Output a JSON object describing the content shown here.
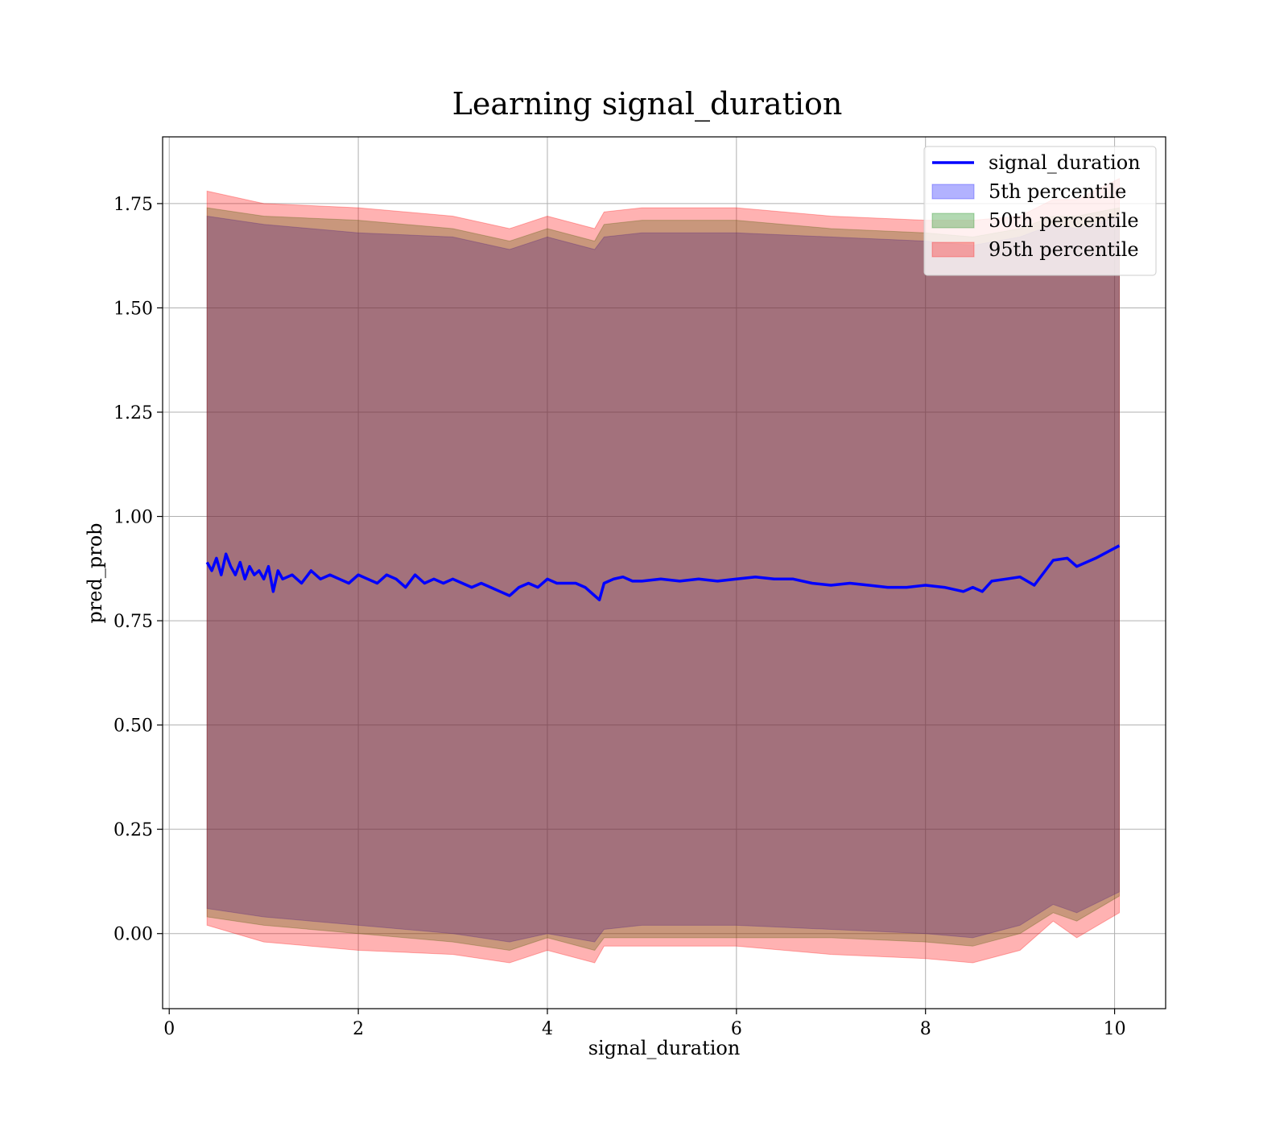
{
  "chart_data": {
    "type": "line",
    "title": "Learning signal_duration",
    "xlabel": "signal_duration",
    "ylabel": "pred_prob",
    "xlim": [
      -0.07,
      10.54
    ],
    "ylim": [
      -0.18,
      1.91
    ],
    "xticks": [
      0,
      2,
      4,
      6,
      8,
      10
    ],
    "xtick_labels": [
      "0",
      "2",
      "4",
      "6",
      "8",
      "10"
    ],
    "yticks": [
      0.0,
      0.25,
      0.5,
      0.75,
      1.0,
      1.25,
      1.5,
      1.75
    ],
    "ytick_labels": [
      "0.00",
      "0.25",
      "0.50",
      "0.75",
      "1.00",
      "1.25",
      "1.50",
      "1.75"
    ],
    "grid": true,
    "legend": {
      "position": "top-right",
      "entries": [
        {
          "label": "signal_duration",
          "kind": "line",
          "color": "#0000ff"
        },
        {
          "label": "5th percentile",
          "kind": "band",
          "color": "#0000ff"
        },
        {
          "label": "50th percentile",
          "kind": "band",
          "color": "#008000"
        },
        {
          "label": "95th percentile",
          "kind": "band",
          "color": "#ff0000"
        }
      ]
    },
    "series": [
      {
        "name": "signal_duration",
        "color": "#0000ff",
        "x": [
          0.4,
          0.45,
          0.5,
          0.55,
          0.6,
          0.65,
          0.7,
          0.75,
          0.8,
          0.85,
          0.9,
          0.95,
          1.0,
          1.05,
          1.1,
          1.15,
          1.2,
          1.3,
          1.4,
          1.5,
          1.6,
          1.7,
          1.8,
          1.9,
          2.0,
          2.1,
          2.2,
          2.3,
          2.4,
          2.5,
          2.6,
          2.7,
          2.8,
          2.9,
          3.0,
          3.1,
          3.2,
          3.3,
          3.4,
          3.5,
          3.6,
          3.7,
          3.8,
          3.9,
          4.0,
          4.1,
          4.2,
          4.3,
          4.4,
          4.5,
          4.55,
          4.6,
          4.7,
          4.8,
          4.9,
          5.0,
          5.2,
          5.4,
          5.6,
          5.8,
          6.0,
          6.2,
          6.4,
          6.6,
          6.8,
          7.0,
          7.2,
          7.4,
          7.6,
          7.8,
          8.0,
          8.2,
          8.4,
          8.5,
          8.6,
          8.7,
          8.85,
          9.0,
          9.15,
          9.35,
          9.5,
          9.6,
          9.8,
          10.05
        ],
        "y": [
          0.89,
          0.87,
          0.9,
          0.86,
          0.91,
          0.88,
          0.86,
          0.89,
          0.85,
          0.88,
          0.86,
          0.87,
          0.85,
          0.88,
          0.82,
          0.87,
          0.85,
          0.86,
          0.84,
          0.87,
          0.85,
          0.86,
          0.85,
          0.84,
          0.86,
          0.85,
          0.84,
          0.86,
          0.85,
          0.83,
          0.86,
          0.84,
          0.85,
          0.84,
          0.85,
          0.84,
          0.83,
          0.84,
          0.83,
          0.82,
          0.81,
          0.83,
          0.84,
          0.83,
          0.85,
          0.84,
          0.84,
          0.84,
          0.83,
          0.81,
          0.8,
          0.84,
          0.85,
          0.855,
          0.845,
          0.845,
          0.85,
          0.845,
          0.85,
          0.845,
          0.85,
          0.855,
          0.85,
          0.85,
          0.84,
          0.835,
          0.84,
          0.835,
          0.83,
          0.83,
          0.835,
          0.83,
          0.82,
          0.83,
          0.82,
          0.845,
          0.85,
          0.855,
          0.835,
          0.895,
          0.9,
          0.88,
          0.9,
          0.93
        ]
      },
      {
        "name": "5th percentile",
        "color": "#0000ff",
        "x": [
          0.4,
          1.0,
          2.0,
          3.0,
          3.6,
          4.0,
          4.5,
          4.6,
          5.0,
          6.0,
          7.0,
          8.0,
          8.5,
          9.0,
          9.35,
          9.6,
          10.05
        ],
        "lower": [
          0.06,
          0.04,
          0.02,
          0.0,
          -0.02,
          0.0,
          -0.02,
          0.01,
          0.02,
          0.02,
          0.01,
          0.0,
          -0.01,
          0.02,
          0.07,
          0.05,
          0.1
        ],
        "upper": [
          1.72,
          1.7,
          1.68,
          1.67,
          1.64,
          1.67,
          1.64,
          1.67,
          1.68,
          1.68,
          1.67,
          1.66,
          1.65,
          1.67,
          1.7,
          1.69,
          1.72
        ]
      },
      {
        "name": "50th percentile",
        "color": "#008000",
        "x": [
          0.4,
          1.0,
          2.0,
          3.0,
          3.6,
          4.0,
          4.5,
          4.6,
          5.0,
          6.0,
          7.0,
          8.0,
          8.5,
          9.0,
          9.35,
          9.6,
          10.05
        ],
        "lower": [
          0.04,
          0.02,
          0.0,
          -0.02,
          -0.04,
          -0.01,
          -0.04,
          -0.01,
          -0.01,
          -0.01,
          -0.01,
          -0.02,
          -0.03,
          0.0,
          0.05,
          0.03,
          0.09
        ],
        "upper": [
          1.74,
          1.72,
          1.71,
          1.69,
          1.66,
          1.69,
          1.66,
          1.7,
          1.71,
          1.71,
          1.69,
          1.68,
          1.67,
          1.69,
          1.72,
          1.72,
          1.74
        ]
      },
      {
        "name": "95th percentile",
        "color": "#ff0000",
        "x": [
          0.4,
          1.0,
          2.0,
          3.0,
          3.6,
          4.0,
          4.5,
          4.6,
          5.0,
          6.0,
          7.0,
          8.0,
          8.5,
          9.0,
          9.35,
          9.6,
          10.05
        ],
        "lower": [
          0.02,
          -0.02,
          -0.04,
          -0.05,
          -0.07,
          -0.04,
          -0.07,
          -0.03,
          -0.03,
          -0.03,
          -0.05,
          -0.06,
          -0.07,
          -0.04,
          0.03,
          -0.01,
          0.05
        ],
        "upper": [
          1.78,
          1.75,
          1.74,
          1.72,
          1.69,
          1.72,
          1.69,
          1.73,
          1.74,
          1.74,
          1.72,
          1.71,
          1.71,
          1.72,
          1.76,
          1.76,
          1.81
        ]
      }
    ]
  }
}
